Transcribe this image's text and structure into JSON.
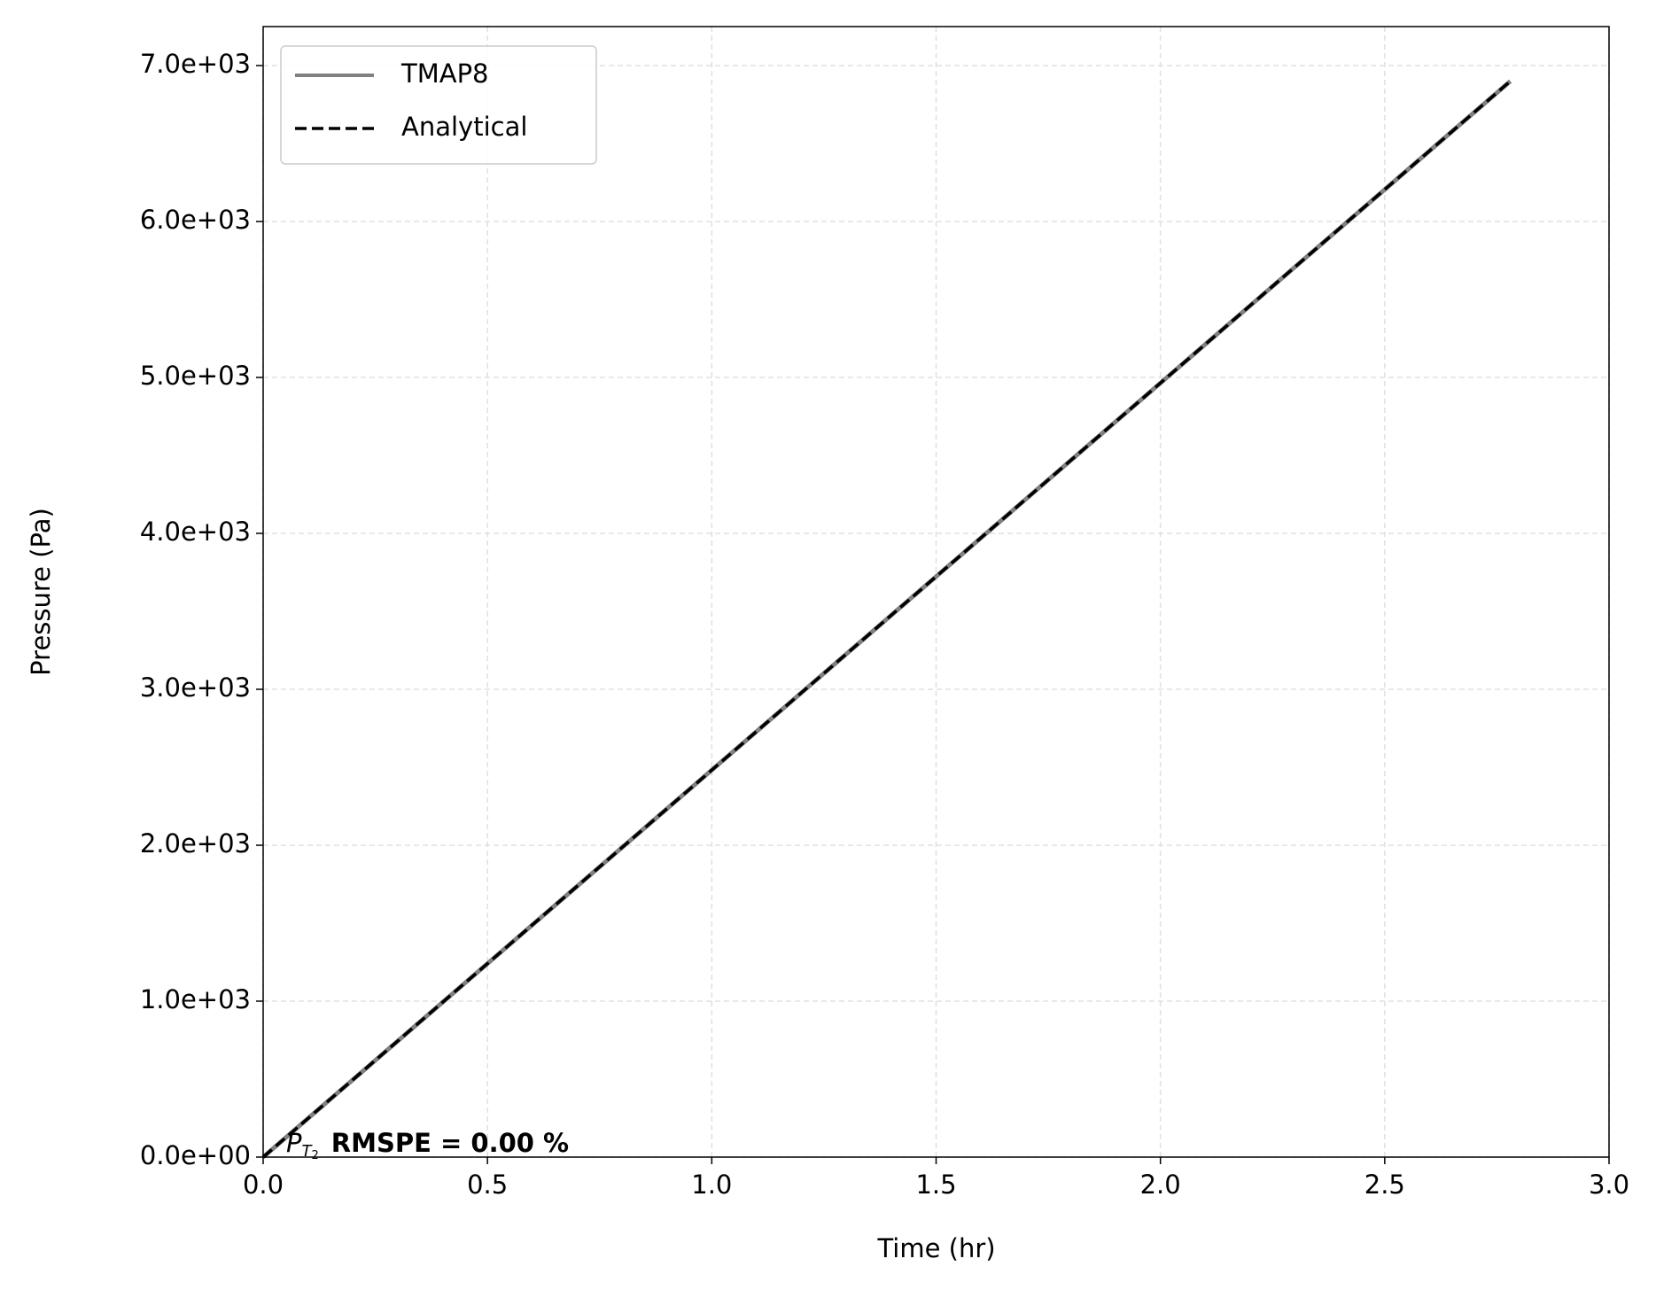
{
  "chart_data": {
    "type": "line",
    "x": [
      0,
      0.5,
      {
        "value": 1.0,
        "label": "1.0"
      },
      1.5,
      2.0,
      2.5,
      2.78
    ],
    "xlabel": "Time (hr)",
    "ylabel": "Pressure (Pa)",
    "xlim": [
      0,
      3
    ],
    "ylim": [
      0,
      7250
    ],
    "xticks": [
      {
        "value": 0,
        "label": "0.0"
      },
      0.5,
      {
        "value": 1,
        "label": "1.0"
      },
      1.5,
      {
        "value": 2,
        "label": "2.0"
      },
      2.5,
      {
        "value": 3,
        "label": "3.0"
      }
    ],
    "yticks": [
      {
        "value": 0,
        "label": "0.0e+00"
      },
      {
        "value": 1000,
        "label": "1.0e+03"
      },
      {
        "value": 2000,
        "label": "2.0e+03"
      },
      {
        "value": 3000,
        "label": "3.0e+03"
      },
      {
        "value": 4000,
        "label": "4.0e+03"
      },
      {
        "value": 5000,
        "label": "5.0e+03"
      },
      {
        "value": 6000,
        "label": "6.0e+03"
      },
      {
        "value": 7000,
        "label": "7.0e+03"
      }
    ],
    "grid": true,
    "legend": "upper-left",
    "series": [
      {
        "name": "TMAP8",
        "color": "#808080",
        "style": "solid",
        "values": [
          0,
          1241,
          2482,
          3723,
          4964,
          6205,
          6900
        ]
      },
      {
        "name": "Analytical",
        "color": "#000000",
        "style": "dashed",
        "values": [
          0,
          1241,
          2482,
          3723,
          4964,
          6205,
          6900
        ]
      }
    ],
    "annotation": {
      "symbol": "P",
      "sub": "T",
      "subsub": "2",
      "text": "RMSPE = 0.00 %"
    }
  }
}
